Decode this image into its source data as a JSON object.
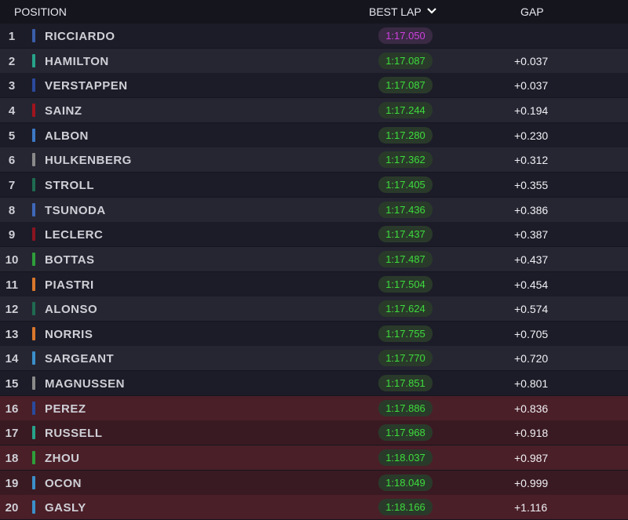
{
  "header": {
    "position": "POSITION",
    "best_lap": "BEST LAP",
    "gap": "GAP"
  },
  "table": {
    "rows": [
      {
        "position": 1,
        "driver": "RICCIARDO",
        "team_color": "#3a5ea8",
        "best_lap": "1:17.050"
      },
      {
        "position": 2,
        "driver": "HAMILTON",
        "team_color": "#27a38a",
        "best_lap": "1:17.087",
        "gap": "+0.037"
      },
      {
        "position": 3,
        "driver": "VERSTAPPEN",
        "team_color": "#2a4a9c",
        "best_lap": "1:17.087",
        "gap": "+0.037"
      },
      {
        "position": 4,
        "driver": "SAINZ",
        "team_color": "#a0141e",
        "best_lap": "1:17.244",
        "gap": "+0.194"
      },
      {
        "position": 5,
        "driver": "ALBON",
        "team_color": "#3c78c4",
        "best_lap": "1:17.280",
        "gap": "+0.230"
      },
      {
        "position": 6,
        "driver": "HULKENBERG",
        "team_color": "#8a8a8a",
        "best_lap": "1:17.362",
        "gap": "+0.312"
      },
      {
        "position": 7,
        "driver": "STROLL",
        "team_color": "#1f6b50",
        "best_lap": "1:17.405",
        "gap": "+0.355"
      },
      {
        "position": 8,
        "driver": "TSUNODA",
        "team_color": "#3f68b8",
        "best_lap": "1:17.436",
        "gap": "+0.386"
      },
      {
        "position": 9,
        "driver": "LECLERC",
        "team_color": "#8a1420",
        "best_lap": "1:17.437",
        "gap": "+0.387"
      },
      {
        "position": 10,
        "driver": "BOTTAS",
        "team_color": "#2e9e3a",
        "best_lap": "1:17.487",
        "gap": "+0.437"
      },
      {
        "position": 11,
        "driver": "PIASTRI",
        "team_color": "#d9772b",
        "best_lap": "1:17.504",
        "gap": "+0.454"
      },
      {
        "position": 12,
        "driver": "ALONSO",
        "team_color": "#1f6b50",
        "best_lap": "1:17.624",
        "gap": "+0.574"
      },
      {
        "position": 13,
        "driver": "NORRIS",
        "team_color": "#d9772b",
        "best_lap": "1:17.755",
        "gap": "+0.705"
      },
      {
        "position": 14,
        "driver": "SARGEANT",
        "team_color": "#3b8fc9",
        "best_lap": "1:17.770",
        "gap": "+0.720"
      },
      {
        "position": 15,
        "driver": "MAGNUSSEN",
        "team_color": "#8a8a8a",
        "best_lap": "1:17.851",
        "gap": "+0.801"
      },
      {
        "position": 16,
        "driver": "PEREZ",
        "team_color": "#2a4a9c",
        "best_lap": "1:17.886",
        "gap": "+0.836"
      },
      {
        "position": 17,
        "driver": "RUSSELL",
        "team_color": "#27a38a",
        "best_lap": "1:17.968",
        "gap": "+0.918"
      },
      {
        "position": 18,
        "driver": "ZHOU",
        "team_color": "#2e9e3a",
        "best_lap": "1:18.037",
        "gap": "+0.987"
      },
      {
        "position": 19,
        "driver": "OCON",
        "team_color": "#3b8fc9",
        "best_lap": "1:18.049",
        "gap": "+0.999"
      },
      {
        "position": 20,
        "driver": "GASLY",
        "team_color": "#3b8fc9",
        "best_lap": "1:18.166",
        "gap": "+1.116"
      }
    ]
  }
}
